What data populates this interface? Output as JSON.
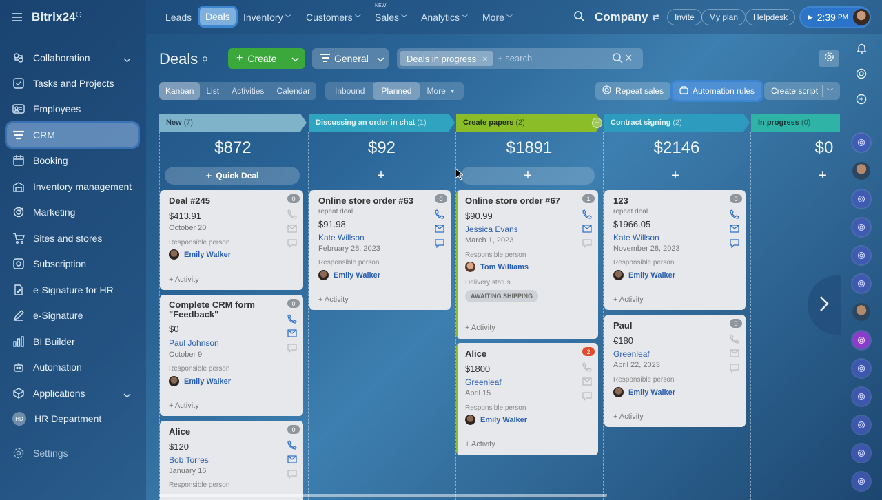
{
  "app": {
    "name": "Bitrix24",
    "logo_mark": "◷"
  },
  "sidebar": {
    "items": [
      {
        "label": "Collaboration",
        "icon": "collaboration-icon",
        "expandable": true
      },
      {
        "label": "Tasks and Projects",
        "icon": "tasks-icon"
      },
      {
        "label": "Employees",
        "icon": "employees-icon"
      },
      {
        "label": "CRM",
        "icon": "crm-icon",
        "active": true
      },
      {
        "label": "Booking",
        "icon": "booking-icon"
      },
      {
        "label": "Inventory management",
        "icon": "inventory-icon"
      },
      {
        "label": "Marketing",
        "icon": "marketing-icon"
      },
      {
        "label": "Sites and stores",
        "icon": "cart-icon"
      },
      {
        "label": "Subscription",
        "icon": "subscription-icon"
      },
      {
        "label": "e-Signature for HR",
        "icon": "signature-hr-icon"
      },
      {
        "label": "e-Signature",
        "icon": "signature-icon"
      },
      {
        "label": "BI Builder",
        "icon": "bi-icon"
      },
      {
        "label": "Automation",
        "icon": "automation-icon"
      },
      {
        "label": "Applications",
        "icon": "applications-icon",
        "expandable": true
      },
      {
        "label": "HR Department",
        "avatar": "HD"
      }
    ],
    "settings": "Settings"
  },
  "topbar": {
    "nav": [
      "Leads",
      "Deals",
      "Inventory",
      "Customers",
      "Sales",
      "Analytics",
      "More"
    ],
    "new_tag": "NEW",
    "company": "Company",
    "invite": "Invite",
    "my_plan": "My plan",
    "helpdesk": "Helpdesk",
    "time": "2:39",
    "ampm": "PM"
  },
  "header": {
    "title": "Deals",
    "create": "Create",
    "general": "General",
    "filter_chip": "Deals in progress",
    "search_placeholder": "+ search"
  },
  "views": {
    "tabs": [
      "Kanban",
      "List",
      "Activities",
      "Calendar"
    ],
    "modes": [
      "Inbound",
      "Planned",
      "More"
    ],
    "repeat_sales": "Repeat sales",
    "automation_rules": "Automation rules",
    "create_script": "Create script"
  },
  "columns": [
    {
      "name": "New",
      "count": "(7)",
      "sum": "$872",
      "color": "#7fb3c9"
    },
    {
      "name": "Discussing an order in chat",
      "count": "(1)",
      "sum": "$92",
      "color": "#2fa3bf"
    },
    {
      "name": "Create papers",
      "count": "(2)",
      "sum": "$1891",
      "color": "#8bbd28"
    },
    {
      "name": "Contract signing",
      "count": "(2)",
      "sum": "$2146",
      "color": "#2d9bbd"
    },
    {
      "name": "In progress",
      "count": "(0)",
      "sum": "$0",
      "color": "#2fb3a6"
    }
  ],
  "quick_deal": "Quick Deal",
  "cards": {
    "c1": {
      "title": "Deal #245",
      "amount": "$413.91",
      "date": "October 20",
      "resp_label": "Responsible person",
      "person": "Emily Walker",
      "activity": "+ Activity",
      "badge": "0"
    },
    "c2": {
      "title": "Complete CRM form \"Feedback\"",
      "amount": "$0",
      "contact": "Paul Johnson",
      "date": "October 9",
      "resp_label": "Responsible person",
      "person": "Emily Walker",
      "activity": "+ Activity",
      "badge": "0"
    },
    "c3": {
      "title": "Alice",
      "amount": "$120",
      "contact": "Bob Torres",
      "date": "January 16",
      "resp_label": "Responsible person",
      "badge": "0"
    },
    "c4": {
      "title": "Online store order #63",
      "sub": "repeat deal",
      "amount": "$91.98",
      "contact": "Kate Willson",
      "date": "February 28, 2023",
      "resp_label": "Responsible person",
      "person": "Emily Walker",
      "activity": "+ Activity",
      "badge": "0"
    },
    "c5": {
      "title": "Online store order #67",
      "amount": "$90.99",
      "contact": "Jessica Evans",
      "date": "March 1, 2023",
      "resp_label": "Responsible person",
      "person": "Tom Williams",
      "delivery_label": "Delivery status",
      "delivery_status": "AWAITING SHIPPING",
      "activity": "+ Activity",
      "badge": "1"
    },
    "c6": {
      "title": "Alice",
      "amount": "$1800",
      "contact": "Greenleaf",
      "date": "April 15",
      "resp_label": "Responsible person",
      "person": "Emily Walker",
      "activity": "+ Activity",
      "badge": "2"
    },
    "c7": {
      "title": "123",
      "sub": "repeat deal",
      "amount": "$1966.05",
      "contact": "Kate Willson",
      "date": "November 28, 2023",
      "resp_label": "Responsible person",
      "person": "Emily Walker",
      "activity": "+ Activity",
      "badge": "0"
    },
    "c8": {
      "title": "Paul",
      "amount": "€180",
      "contact": "Greenleaf",
      "date": "April 22, 2023",
      "resp_label": "Responsible person",
      "person": "Emily Walker",
      "activity": "+ Activity",
      "badge": "0"
    }
  }
}
